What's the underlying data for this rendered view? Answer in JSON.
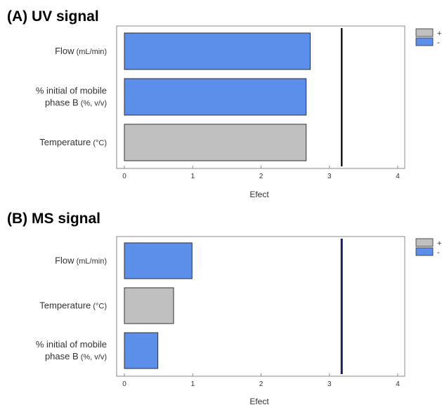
{
  "colors": {
    "positive": "#c0c0c0",
    "negative": "#5b8fea",
    "bar_border": "#303030",
    "threshold_a": "#1a1a1a",
    "threshold_b": "#1a1a6a"
  },
  "panels": {
    "a": {
      "title": "(A) UV signal"
    },
    "b": {
      "title": "(B) MS signal"
    }
  },
  "chart_data": [
    {
      "type": "bar",
      "orientation": "horizontal",
      "title": "(A) UV signal",
      "xlabel": "Efect",
      "ylabel": "",
      "xlim": [
        0,
        4
      ],
      "xticks": [
        "0",
        "1",
        "2",
        "3",
        "4"
      ],
      "categories": [
        {
          "label": "Flow",
          "unit": "(mL/min)",
          "lines": [
            "Flow"
          ],
          "value": 2.72,
          "sign": "-"
        },
        {
          "label": "% initial of mobile phase B",
          "unit": "(%, v/v)",
          "lines": [
            "% initial of mobile",
            "phase B"
          ],
          "value": 2.66,
          "sign": "-"
        },
        {
          "label": "Temperature",
          "unit": "(°C)",
          "lines": [
            "Temperature"
          ],
          "value": 2.66,
          "sign": "+"
        }
      ],
      "reference_line": 3.18,
      "legend": {
        "placement": "top-right",
        "entries": [
          {
            "sign": "+",
            "label": "+"
          },
          {
            "sign": "-",
            "label": "-"
          }
        ]
      },
      "grid": false
    },
    {
      "type": "bar",
      "orientation": "horizontal",
      "title": "(B) MS signal",
      "xlabel": "Efect",
      "ylabel": "",
      "xlim": [
        0,
        4
      ],
      "xticks": [
        "0",
        "1",
        "2",
        "3",
        "4"
      ],
      "categories": [
        {
          "label": "Flow",
          "unit": "(mL/min)",
          "lines": [
            "Flow"
          ],
          "value": 0.99,
          "sign": "-"
        },
        {
          "label": "Temperature",
          "unit": "(°C)",
          "lines": [
            "Temperature"
          ],
          "value": 0.72,
          "sign": "+"
        },
        {
          "label": "% initial of mobile phase B",
          "unit": "(%, v/v)",
          "lines": [
            "% initial of mobile",
            "phase B"
          ],
          "value": 0.49,
          "sign": "-"
        }
      ],
      "reference_line": 3.18,
      "legend": {
        "placement": "top-right",
        "entries": [
          {
            "sign": "+",
            "label": "+"
          },
          {
            "sign": "-",
            "label": "-"
          }
        ]
      },
      "grid": false
    }
  ]
}
